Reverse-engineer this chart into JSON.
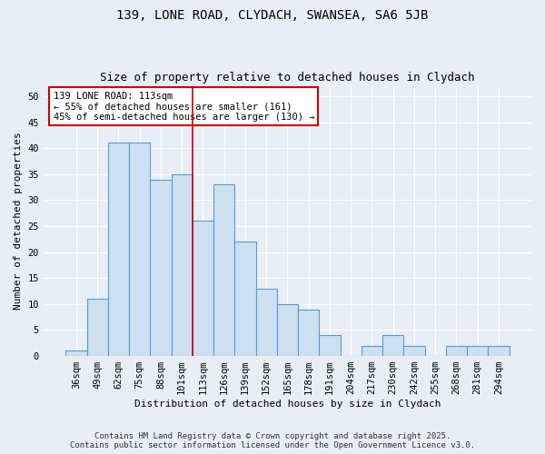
{
  "title1": "139, LONE ROAD, CLYDACH, SWANSEA, SA6 5JB",
  "title2": "Size of property relative to detached houses in Clydach",
  "xlabel": "Distribution of detached houses by size in Clydach",
  "ylabel": "Number of detached properties",
  "categories": [
    "36sqm",
    "49sqm",
    "62sqm",
    "75sqm",
    "88sqm",
    "101sqm",
    "113sqm",
    "126sqm",
    "139sqm",
    "152sqm",
    "165sqm",
    "178sqm",
    "191sqm",
    "204sqm",
    "217sqm",
    "230sqm",
    "242sqm",
    "255sqm",
    "268sqm",
    "281sqm",
    "294sqm"
  ],
  "values": [
    1,
    11,
    41,
    41,
    34,
    35,
    26,
    33,
    22,
    13,
    10,
    9,
    4,
    0,
    2,
    4,
    2,
    0,
    2,
    2,
    2
  ],
  "bar_color": "#cce0f0",
  "bar_edge_color": "#5b9bd5",
  "vline_x_index": 6,
  "vline_color": "#cc0000",
  "annotation_title": "139 LONE ROAD: 113sqm",
  "annotation_line1": "← 55% of detached houses are smaller (161)",
  "annotation_line2": "45% of semi-detached houses are larger (130) →",
  "annotation_box_color": "#ffffff",
  "annotation_box_edge": "#cc0000",
  "ylim": [
    0,
    52
  ],
  "yticks": [
    0,
    5,
    10,
    15,
    20,
    25,
    30,
    35,
    40,
    45,
    50
  ],
  "background_color": "#e8eef5",
  "plot_bg_color": "#e8eef5",
  "footer1": "Contains HM Land Registry data © Crown copyright and database right 2025.",
  "footer2": "Contains public sector information licensed under the Open Government Licence v3.0.",
  "title1_fontsize": 10,
  "title2_fontsize": 9,
  "axis_fontsize": 8,
  "tick_fontsize": 7.5,
  "footer_fontsize": 6.5,
  "ann_fontsize": 7.5
}
